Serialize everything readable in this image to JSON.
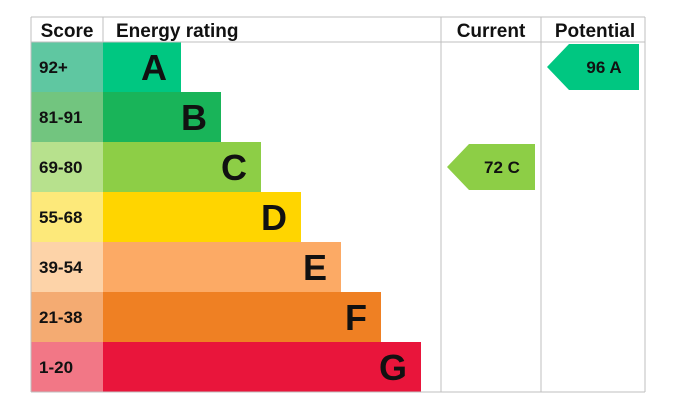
{
  "chart_data": {
    "type": "bar",
    "columns": {
      "score": "Score",
      "energy_rating": "Energy rating",
      "current": "Current",
      "potential": "Potential"
    },
    "bands": [
      {
        "range": "92+",
        "letter": "A",
        "score_color": "#5fc7a1",
        "bar_color": "#00c781"
      },
      {
        "range": "81-91",
        "letter": "B",
        "score_color": "#72c57f",
        "bar_color": "#19b459"
      },
      {
        "range": "69-80",
        "letter": "C",
        "score_color": "#b7e18d",
        "bar_color": "#8dce46"
      },
      {
        "range": "55-68",
        "letter": "D",
        "score_color": "#fde97a",
        "bar_color": "#ffd500"
      },
      {
        "range": "39-54",
        "letter": "E",
        "score_color": "#fdd3a8",
        "bar_color": "#fcaa65"
      },
      {
        "range": "21-38",
        "letter": "F",
        "score_color": "#f4ab72",
        "bar_color": "#ef8023"
      },
      {
        "range": "1-20",
        "letter": "G",
        "score_color": "#f27786",
        "bar_color": "#e9153b"
      }
    ],
    "current": {
      "value": 72,
      "letter": "C",
      "text": "72 C",
      "color": "#8dce46"
    },
    "potential": {
      "value": 96,
      "letter": "A",
      "text": "96 A",
      "color": "#00c781"
    }
  }
}
